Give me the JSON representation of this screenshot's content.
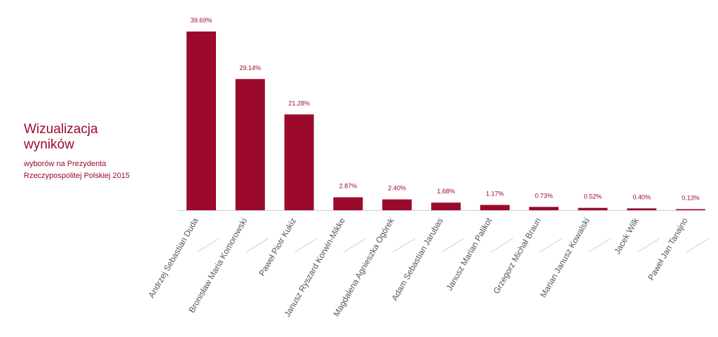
{
  "side_panel": {
    "title_line1": "Wizualizacja",
    "title_line2": "wyników",
    "subtitle_line1": "wyborów na Prezydenta",
    "subtitle_line2": "Rzeczypospolitej Polskiej 2015"
  },
  "colors": {
    "bar": "#9b0a2b",
    "axis": "#cccccc",
    "label_line": "#cccccc"
  },
  "chart_data": {
    "type": "bar",
    "categories": [
      "Andrzej Sebastian Duda",
      "Bronisław Maria Komorowski",
      "Paweł Piotr Kukiz",
      "Janusz Ryszard Korwin-Mikke",
      "Magdalena Agnieszka Ogórek",
      "Adam Sebastian Jarubas",
      "Janusz Marian Palikot",
      "Grzegorz Michał Braun",
      "Marian Janusz Kowalski",
      "Jacek Wilk",
      "Paweł Jan Tanajno"
    ],
    "values": [
      39.69,
      29.14,
      21.28,
      2.87,
      2.4,
      1.68,
      1.17,
      0.73,
      0.52,
      0.4,
      0.13
    ],
    "value_labels": [
      "39.69%",
      "29.14%",
      "21.28%",
      "2.87%",
      "2.40%",
      "1.68%",
      "1.17%",
      "0.73%",
      "0.52%",
      "0.40%",
      "0.13%"
    ],
    "ylim": [
      0,
      39.69
    ],
    "grid": false,
    "legend": false
  }
}
